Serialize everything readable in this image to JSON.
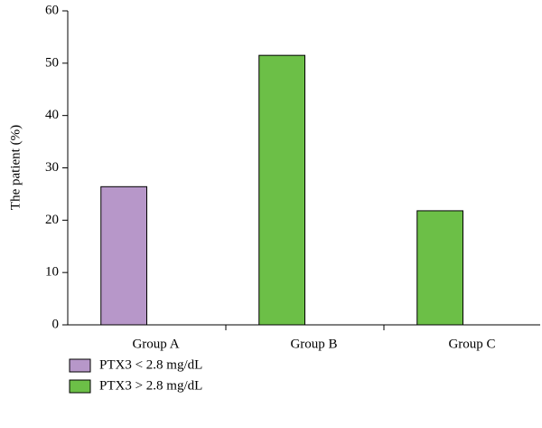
{
  "chart_data": {
    "type": "bar",
    "ylabel": "The patient (%)",
    "categories": [
      "Group A",
      "Group B",
      "Group C"
    ],
    "series": [
      {
        "name": "PTX3 < 2.8 mg/dL",
        "color": "#b797c9",
        "values": [
          26.4,
          null,
          null
        ]
      },
      {
        "name": "PTX3 > 2.8 mg/dL",
        "color": "#6cbf47",
        "values": [
          null,
          51.5,
          21.8
        ]
      }
    ],
    "ylim": [
      0,
      60
    ],
    "yticks": [
      0,
      10,
      20,
      30,
      40,
      50,
      60
    ],
    "grid": false
  }
}
